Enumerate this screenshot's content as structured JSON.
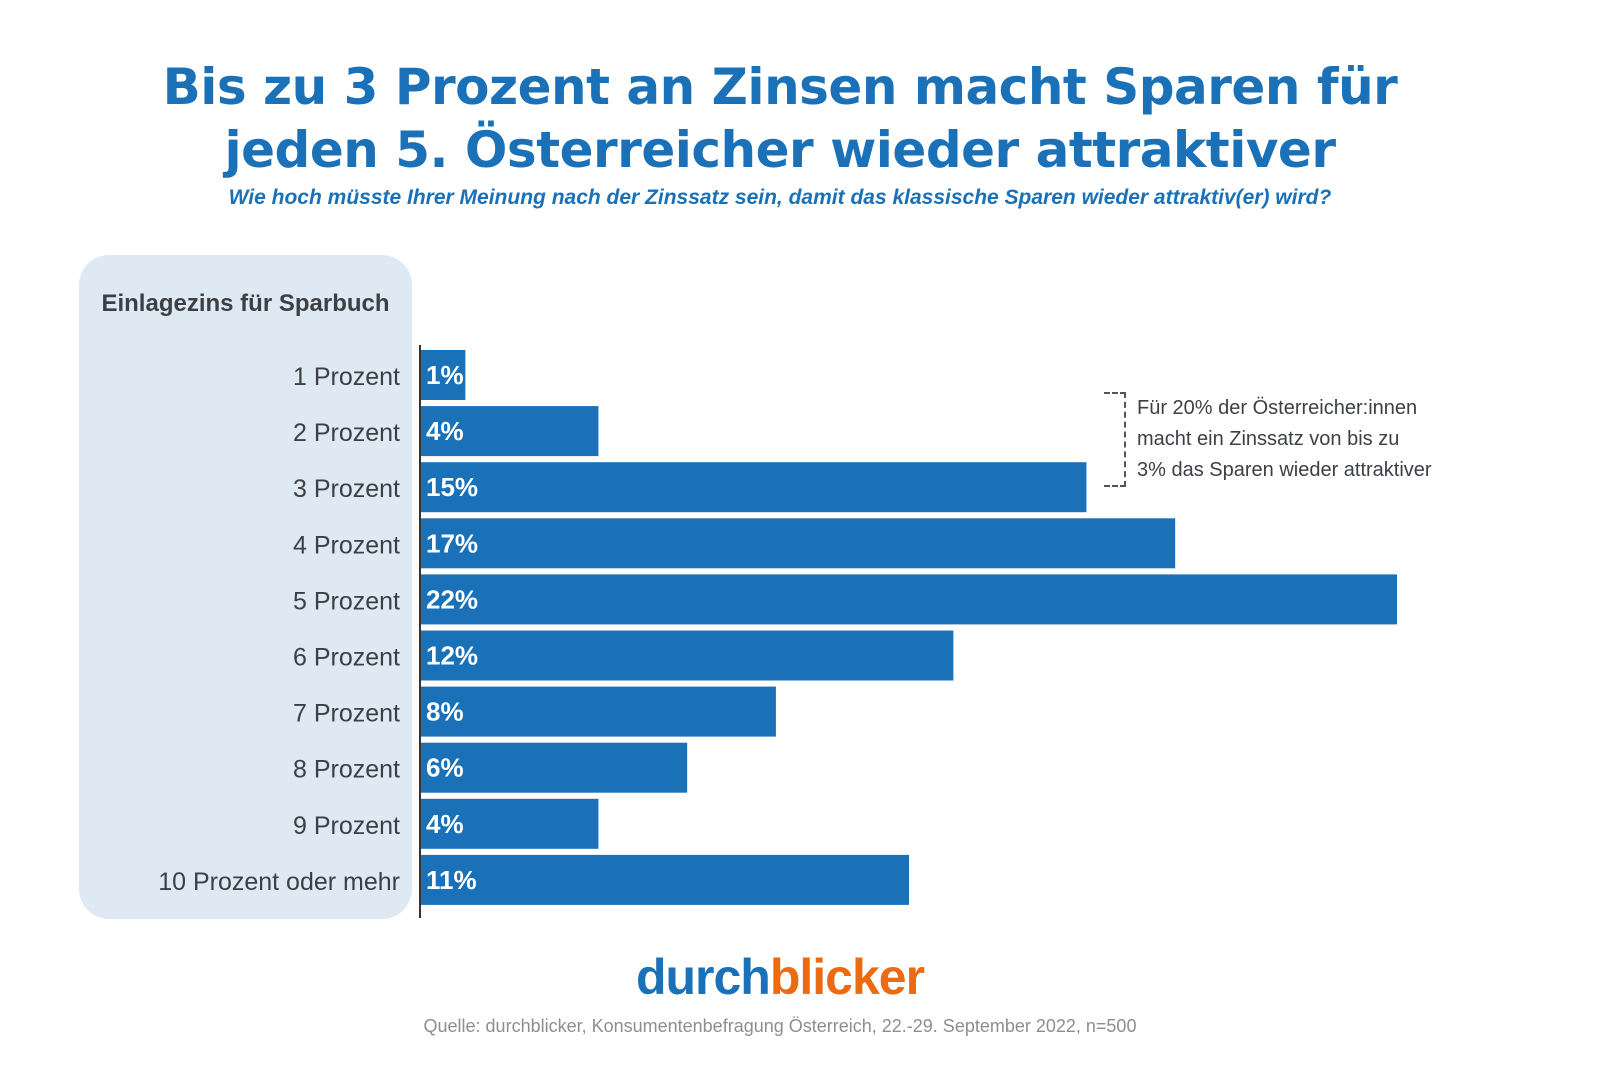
{
  "header": {
    "title_line1": "Bis zu 3 Prozent an Zinsen macht Sparen für",
    "title_line2": "jeden 5. Österreicher wieder attraktiver",
    "subtitle": "Wie hoch müsste Ihrer Meinung nach der Zinssatz sein, damit das klassische Sparen wieder attraktiv(er) wird?"
  },
  "annotation": {
    "lines": [
      "Für 20% der Österreicher:innen",
      "macht ein Zinssatz von bis zu",
      "3% das Sparen wieder attraktiver"
    ]
  },
  "footer": {
    "logo_part1": "durch",
    "logo_part2": "blicker",
    "source": "Quelle: durchblicker, Konsumentenbefragung Österreich,  22.-29. September 2022, n=500"
  },
  "colors": {
    "bar": "#1a71b8",
    "title": "#1a71b8",
    "logo_blue": "#1a71b8",
    "logo_orange": "#ec6a12",
    "panel": "#dfe9f4"
  },
  "chart_data": {
    "type": "bar",
    "orientation": "horizontal",
    "title": "Bis zu 3 Prozent an Zinsen macht Sparen für jeden 5. Österreicher wieder attraktiver",
    "subtitle": "Wie hoch müsste Ihrer Meinung nach der Zinssatz sein, damit das klassische Sparen wieder attraktiv(er) wird?",
    "category_axis_title": "Einlagezins für Sparbuch",
    "categories": [
      "1 Prozent",
      "2 Prozent",
      "3 Prozent",
      "4 Prozent",
      "5 Prozent",
      "6 Prozent",
      "7 Prozent",
      "8 Prozent",
      "9 Prozent",
      "10 Prozent oder mehr"
    ],
    "values": [
      1,
      4,
      15,
      17,
      22,
      12,
      8,
      6,
      4,
      11
    ],
    "value_labels": [
      "1%",
      "4%",
      "15%",
      "17%",
      "22%",
      "12%",
      "8%",
      "6%",
      "4%",
      "11%"
    ],
    "unit": "%",
    "xlim": [
      0,
      22
    ],
    "grid": false,
    "legend": "none"
  }
}
